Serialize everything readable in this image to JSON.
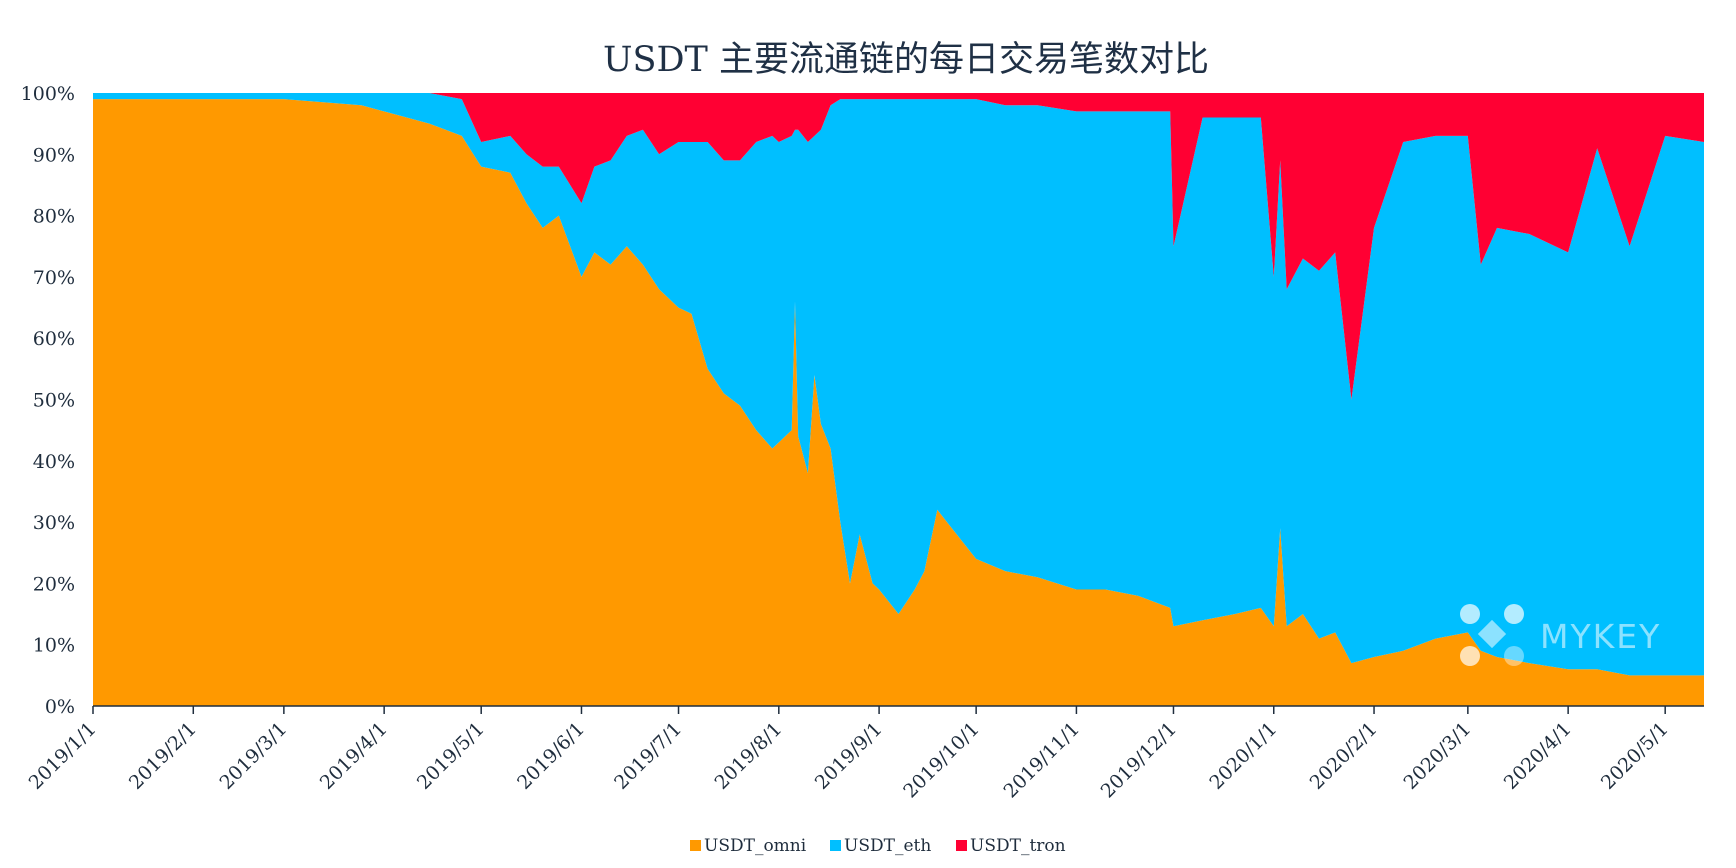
{
  "chart_data": {
    "type": "area",
    "stacked": true,
    "normalized_percent": true,
    "title": "USDT 主要流通链的每日交易笔数对比",
    "xlabel": "",
    "ylabel": "",
    "ylim": [
      0,
      100
    ],
    "y_ticks": [
      "0%",
      "10%",
      "20%",
      "30%",
      "40%",
      "50%",
      "60%",
      "70%",
      "80%",
      "90%",
      "100%"
    ],
    "x_range": [
      "2019/1/1",
      "2020/5/13"
    ],
    "x_ticks": [
      "2019/1/1",
      "2019/2/1",
      "2019/3/1",
      "2019/4/1",
      "2019/5/1",
      "2019/6/1",
      "2019/7/1",
      "2019/8/1",
      "2019/9/1",
      "2019/10/1",
      "2019/11/1",
      "2019/12/1",
      "2020/1/1",
      "2020/2/1",
      "2020/3/1",
      "2020/4/1",
      "2020/5/1"
    ],
    "grid": false,
    "legend_position": "bottom",
    "series": [
      {
        "name": "USDT_omni",
        "color": "#FF9900",
        "points": [
          [
            "2019/1/1",
            99
          ],
          [
            "2019/2/1",
            99
          ],
          [
            "2019/3/1",
            99
          ],
          [
            "2019/3/25",
            98
          ],
          [
            "2019/4/1",
            97
          ],
          [
            "2019/4/15",
            95
          ],
          [
            "2019/4/25",
            93
          ],
          [
            "2019/5/1",
            88
          ],
          [
            "2019/5/10",
            87
          ],
          [
            "2019/5/15",
            82
          ],
          [
            "2019/5/20",
            78
          ],
          [
            "2019/5/25",
            80
          ],
          [
            "2019/6/1",
            70
          ],
          [
            "2019/6/5",
            74
          ],
          [
            "2019/6/10",
            72
          ],
          [
            "2019/6/15",
            75
          ],
          [
            "2019/6/20",
            72
          ],
          [
            "2019/6/25",
            68
          ],
          [
            "2019/7/1",
            65
          ],
          [
            "2019/7/5",
            64
          ],
          [
            "2019/7/10",
            55
          ],
          [
            "2019/7/15",
            51
          ],
          [
            "2019/7/20",
            49
          ],
          [
            "2019/7/25",
            45
          ],
          [
            "2019/7/30",
            42
          ],
          [
            "2019/8/1",
            43
          ],
          [
            "2019/8/5",
            45
          ],
          [
            "2019/8/6",
            66
          ],
          [
            "2019/8/7",
            44
          ],
          [
            "2019/8/10",
            38
          ],
          [
            "2019/8/12",
            54
          ],
          [
            "2019/8/14",
            46
          ],
          [
            "2019/8/17",
            42
          ],
          [
            "2019/8/20",
            30
          ],
          [
            "2019/8/23",
            20
          ],
          [
            "2019/8/26",
            28
          ],
          [
            "2019/8/30",
            20
          ],
          [
            "2019/9/1",
            19
          ],
          [
            "2019/9/7",
            15
          ],
          [
            "2019/9/12",
            19
          ],
          [
            "2019/9/15",
            22
          ],
          [
            "2019/9/19",
            32
          ],
          [
            "2019/9/22",
            30
          ],
          [
            "2019/9/28",
            26
          ],
          [
            "2019/10/1",
            24
          ],
          [
            "2019/10/10",
            22
          ],
          [
            "2019/10/20",
            21
          ],
          [
            "2019/11/1",
            19
          ],
          [
            "2019/11/10",
            19
          ],
          [
            "2019/11/20",
            18
          ],
          [
            "2019/11/30",
            16
          ],
          [
            "2019/12/1",
            13
          ],
          [
            "2019/12/10",
            14
          ],
          [
            "2019/12/20",
            15
          ],
          [
            "2019/12/28",
            16
          ],
          [
            "2020/1/1",
            13
          ],
          [
            "2020/1/3",
            29
          ],
          [
            "2020/1/5",
            13
          ],
          [
            "2020/1/10",
            15
          ],
          [
            "2020/1/15",
            11
          ],
          [
            "2020/1/20",
            12
          ],
          [
            "2020/1/25",
            7
          ],
          [
            "2020/2/1",
            8
          ],
          [
            "2020/2/10",
            9
          ],
          [
            "2020/2/20",
            11
          ],
          [
            "2020/3/1",
            12
          ],
          [
            "2020/3/5",
            9
          ],
          [
            "2020/3/10",
            8
          ],
          [
            "2020/3/20",
            7
          ],
          [
            "2020/4/1",
            6
          ],
          [
            "2020/4/10",
            6
          ],
          [
            "2020/4/20",
            5
          ],
          [
            "2020/5/1",
            5
          ],
          [
            "2020/5/13",
            5
          ]
        ]
      },
      {
        "name": "USDT_eth",
        "color": "#00BFFF",
        "points": [
          [
            "2019/1/1",
            1
          ],
          [
            "2019/2/1",
            1
          ],
          [
            "2019/3/1",
            1
          ],
          [
            "2019/3/25",
            2
          ],
          [
            "2019/4/1",
            3
          ],
          [
            "2019/4/15",
            5
          ],
          [
            "2019/4/25",
            6
          ],
          [
            "2019/5/1",
            4
          ],
          [
            "2019/5/10",
            6
          ],
          [
            "2019/5/15",
            8
          ],
          [
            "2019/5/20",
            10
          ],
          [
            "2019/5/25",
            8
          ],
          [
            "2019/6/1",
            12
          ],
          [
            "2019/6/5",
            14
          ],
          [
            "2019/6/10",
            17
          ],
          [
            "2019/6/15",
            18
          ],
          [
            "2019/6/20",
            22
          ],
          [
            "2019/6/25",
            22
          ],
          [
            "2019/7/1",
            27
          ],
          [
            "2019/7/5",
            28
          ],
          [
            "2019/7/10",
            37
          ],
          [
            "2019/7/15",
            38
          ],
          [
            "2019/7/20",
            40
          ],
          [
            "2019/7/25",
            47
          ],
          [
            "2019/7/30",
            51
          ],
          [
            "2019/8/1",
            49
          ],
          [
            "2019/8/5",
            48
          ],
          [
            "2019/8/6",
            28
          ],
          [
            "2019/8/7",
            50
          ],
          [
            "2019/8/10",
            54
          ],
          [
            "2019/8/12",
            39
          ],
          [
            "2019/8/14",
            48
          ],
          [
            "2019/8/17",
            56
          ],
          [
            "2019/8/20",
            69
          ],
          [
            "2019/8/23",
            79
          ],
          [
            "2019/8/26",
            71
          ],
          [
            "2019/8/30",
            79
          ],
          [
            "2019/9/1",
            80
          ],
          [
            "2019/9/7",
            84
          ],
          [
            "2019/9/12",
            80
          ],
          [
            "2019/9/15",
            77
          ],
          [
            "2019/9/19",
            67
          ],
          [
            "2019/9/22",
            69
          ],
          [
            "2019/9/28",
            73
          ],
          [
            "2019/10/1",
            75
          ],
          [
            "2019/10/10",
            76
          ],
          [
            "2019/10/20",
            77
          ],
          [
            "2019/11/1",
            78
          ],
          [
            "2019/11/10",
            78
          ],
          [
            "2019/11/20",
            79
          ],
          [
            "2019/11/30",
            81
          ],
          [
            "2019/12/1",
            62
          ],
          [
            "2019/12/10",
            82
          ],
          [
            "2019/12/20",
            81
          ],
          [
            "2019/12/28",
            80
          ],
          [
            "2020/1/1",
            57
          ],
          [
            "2020/1/3",
            60
          ],
          [
            "2020/1/5",
            55
          ],
          [
            "2020/1/10",
            58
          ],
          [
            "2020/1/15",
            60
          ],
          [
            "2020/1/20",
            62
          ],
          [
            "2020/1/25",
            43
          ],
          [
            "2020/2/1",
            70
          ],
          [
            "2020/2/10",
            83
          ],
          [
            "2020/2/20",
            82
          ],
          [
            "2020/3/1",
            81
          ],
          [
            "2020/3/5",
            63
          ],
          [
            "2020/3/10",
            70
          ],
          [
            "2020/3/20",
            70
          ],
          [
            "2020/4/1",
            68
          ],
          [
            "2020/4/10",
            85
          ],
          [
            "2020/4/20",
            70
          ],
          [
            "2020/5/1",
            88
          ],
          [
            "2020/5/13",
            87
          ]
        ]
      },
      {
        "name": "USDT_tron",
        "color": "#FF0033",
        "points": [
          [
            "2019/1/1",
            0
          ],
          [
            "2019/2/1",
            0
          ],
          [
            "2019/3/1",
            0
          ],
          [
            "2019/3/25",
            0
          ],
          [
            "2019/4/1",
            0
          ],
          [
            "2019/4/15",
            0
          ],
          [
            "2019/4/25",
            1
          ],
          [
            "2019/5/1",
            8
          ],
          [
            "2019/5/10",
            7
          ],
          [
            "2019/5/15",
            10
          ],
          [
            "2019/5/20",
            12
          ],
          [
            "2019/5/25",
            12
          ],
          [
            "2019/6/1",
            18
          ],
          [
            "2019/6/5",
            12
          ],
          [
            "2019/6/10",
            11
          ],
          [
            "2019/6/15",
            7
          ],
          [
            "2019/6/20",
            6
          ],
          [
            "2019/6/25",
            10
          ],
          [
            "2019/7/1",
            8
          ],
          [
            "2019/7/5",
            8
          ],
          [
            "2019/7/10",
            8
          ],
          [
            "2019/7/15",
            11
          ],
          [
            "2019/7/20",
            11
          ],
          [
            "2019/7/25",
            8
          ],
          [
            "2019/7/30",
            7
          ],
          [
            "2019/8/1",
            8
          ],
          [
            "2019/8/5",
            7
          ],
          [
            "2019/8/6",
            6
          ],
          [
            "2019/8/7",
            6
          ],
          [
            "2019/8/10",
            8
          ],
          [
            "2019/8/12",
            7
          ],
          [
            "2019/8/14",
            6
          ],
          [
            "2019/8/17",
            2
          ],
          [
            "2019/8/20",
            1
          ],
          [
            "2019/8/23",
            1
          ],
          [
            "2019/8/26",
            1
          ],
          [
            "2019/8/30",
            1
          ],
          [
            "2019/9/1",
            1
          ],
          [
            "2019/9/7",
            1
          ],
          [
            "2019/9/12",
            1
          ],
          [
            "2019/9/15",
            1
          ],
          [
            "2019/9/19",
            1
          ],
          [
            "2019/9/22",
            1
          ],
          [
            "2019/9/28",
            1
          ],
          [
            "2019/10/1",
            1
          ],
          [
            "2019/10/10",
            2
          ],
          [
            "2019/10/20",
            2
          ],
          [
            "2019/11/1",
            3
          ],
          [
            "2019/11/10",
            3
          ],
          [
            "2019/11/20",
            3
          ],
          [
            "2019/11/30",
            3
          ],
          [
            "2019/12/1",
            25
          ],
          [
            "2019/12/10",
            4
          ],
          [
            "2019/12/20",
            4
          ],
          [
            "2019/12/28",
            4
          ],
          [
            "2020/1/1",
            30
          ],
          [
            "2020/1/3",
            11
          ],
          [
            "2020/1/5",
            32
          ],
          [
            "2020/1/10",
            27
          ],
          [
            "2020/1/15",
            29
          ],
          [
            "2020/1/20",
            26
          ],
          [
            "2020/1/25",
            50
          ],
          [
            "2020/2/1",
            22
          ],
          [
            "2020/2/10",
            8
          ],
          [
            "2020/2/20",
            7
          ],
          [
            "2020/3/1",
            7
          ],
          [
            "2020/3/5",
            28
          ],
          [
            "2020/3/10",
            22
          ],
          [
            "2020/3/20",
            23
          ],
          [
            "2020/4/1",
            26
          ],
          [
            "2020/4/10",
            9
          ],
          [
            "2020/4/20",
            25
          ],
          [
            "2020/5/1",
            7
          ],
          [
            "2020/5/13",
            8
          ]
        ]
      }
    ]
  },
  "watermark": {
    "text": "MYKEY"
  }
}
